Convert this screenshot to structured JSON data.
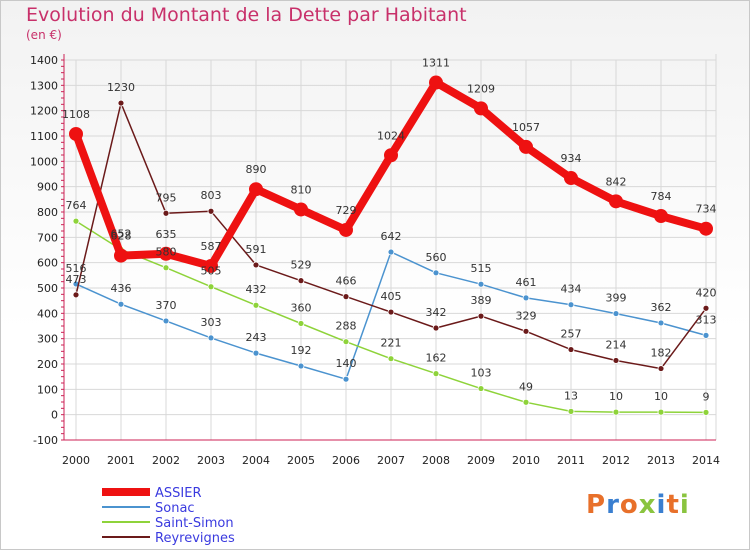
{
  "title": "Evolution du Montant de la Dette par Habitant",
  "subtitle": "(en €)",
  "logo": "Proxiti",
  "chart_data": {
    "type": "line",
    "title": "Evolution du Montant de la Dette par Habitant",
    "subtitle": "(en €)",
    "x": [
      "2000",
      "2001",
      "2002",
      "2003",
      "2004",
      "2005",
      "2006",
      "2007",
      "2008",
      "2009",
      "2010",
      "2011",
      "2012",
      "2013",
      "2014"
    ],
    "ylim": [
      -100,
      1400
    ],
    "yticks": [
      -100,
      0,
      100,
      200,
      300,
      400,
      500,
      600,
      700,
      800,
      900,
      1000,
      1100,
      1200,
      1300,
      1400
    ],
    "grid": true,
    "legend_position": "bottom-left",
    "series": [
      {
        "name": "ASSIER",
        "color": "#ee1111",
        "values": [
          1108,
          628,
          635,
          587,
          890,
          810,
          729,
          1024,
          1311,
          1209,
          1057,
          934,
          842,
          784,
          734
        ],
        "labels": [
          "1108",
          "628",
          "635",
          "587",
          "890",
          "810",
          "729",
          "1024",
          "1311",
          "1209",
          "1057",
          "934",
          "842",
          "784",
          "734"
        ]
      },
      {
        "name": "Sonac",
        "color": "#4b93cf",
        "values": [
          516,
          436,
          370,
          303,
          243,
          192,
          140,
          642,
          560,
          515,
          461,
          434,
          399,
          362,
          313
        ],
        "labels": [
          "516",
          "436",
          "370",
          "303",
          "243",
          "192",
          "140",
          "642",
          "560",
          "515",
          "461",
          "434",
          "399",
          "362",
          "313"
        ]
      },
      {
        "name": "Saint-Simon",
        "color": "#8ed33a",
        "values": [
          764,
          652,
          580,
          505,
          432,
          360,
          288,
          221,
          162,
          103,
          49,
          13,
          10,
          10,
          9
        ],
        "labels": [
          "764",
          "652",
          "580",
          "505",
          "432",
          "360",
          "288",
          "221",
          "162",
          "103",
          "49",
          "13",
          "10",
          "10",
          "9"
        ]
      },
      {
        "name": "Reyrevignes",
        "color": "#6b1a1a",
        "values": [
          473,
          1230,
          795,
          803,
          591,
          529,
          466,
          405,
          342,
          389,
          329,
          257,
          214,
          182,
          420
        ],
        "labels": [
          "473",
          "1230",
          "795",
          "803",
          "591",
          "529",
          "466",
          "405",
          "342",
          "389",
          "329",
          "257",
          "214",
          "182",
          "420"
        ]
      }
    ]
  }
}
